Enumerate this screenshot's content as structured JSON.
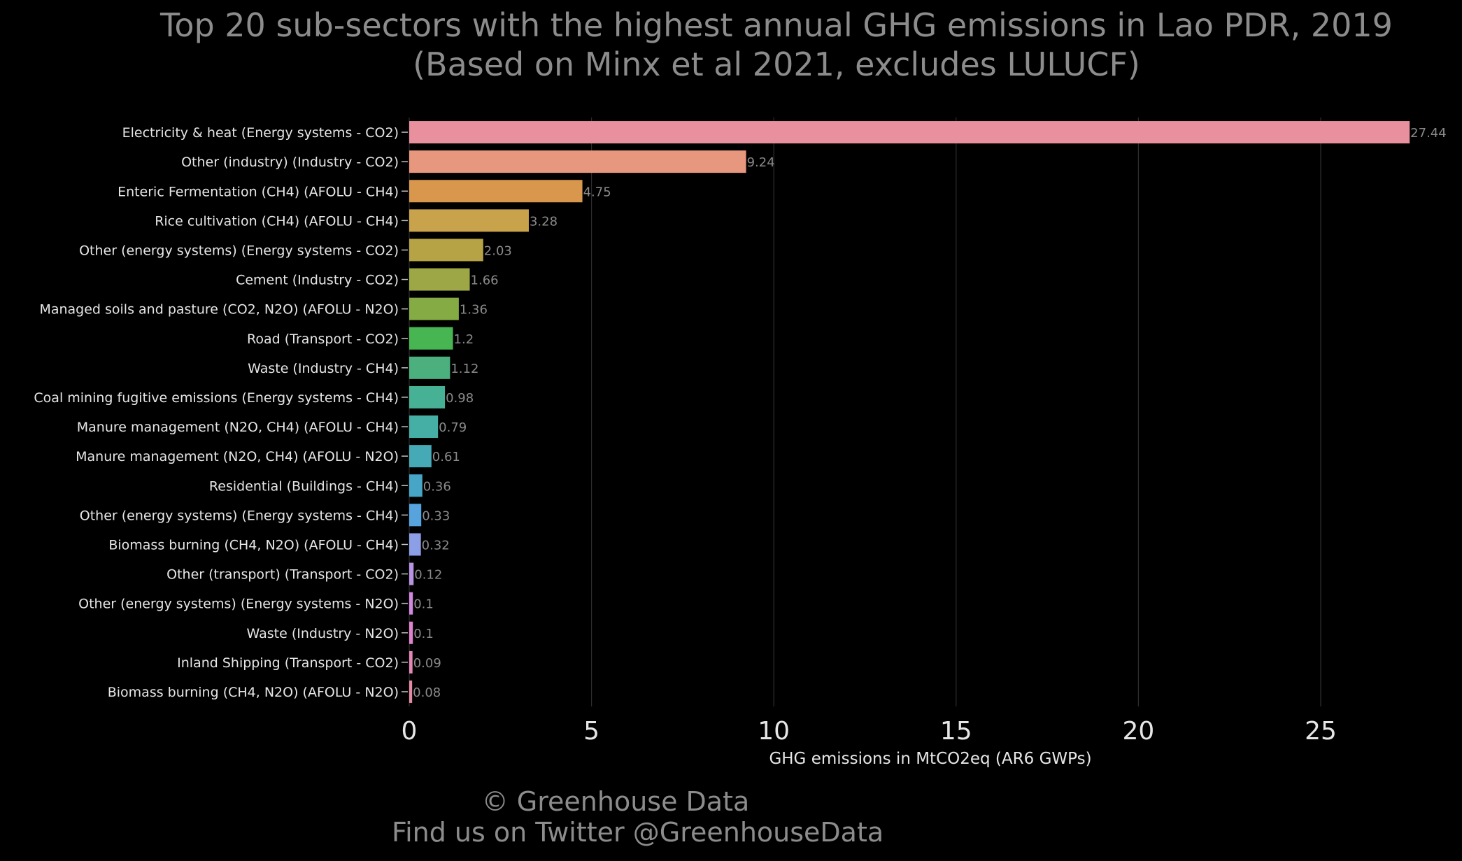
{
  "footer": {
    "copyright": "© Greenhouse Data",
    "twitter": "Find us on Twitter @GreenhouseData"
  },
  "chart_data": {
    "type": "bar",
    "orientation": "horizontal",
    "title": "Top 20 sub-sectors with the highest annual GHG emissions in Lao PDR, 2019",
    "subtitle": "(Based on Minx et al 2021, excludes LULUCF)",
    "xlabel": "GHG emissions in MtCO2eq (AR6 GWPs)",
    "ylabel": "",
    "xlim": [
      0,
      28.3
    ],
    "xticks": [
      0,
      5,
      10,
      15,
      20,
      25
    ],
    "grid": "vertical",
    "categories": [
      "Electricity & heat (Energy systems - CO2)",
      "Other (industry) (Industry - CO2)",
      "Enteric Fermentation (CH4) (AFOLU - CH4)",
      "Rice cultivation (CH4) (AFOLU - CH4)",
      "Other (energy systems) (Energy systems - CO2)",
      "Cement (Industry - CO2)",
      "Managed soils and pasture (CO2, N2O) (AFOLU - N2O)",
      "Road (Transport - CO2)",
      "Waste (Industry - CH4)",
      "Coal mining fugitive emissions (Energy systems - CH4)",
      "Manure management (N2O, CH4) (AFOLU - CH4)",
      "Manure management (N2O, CH4) (AFOLU - N2O)",
      "Residential (Buildings - CH4)",
      "Other (energy systems) (Energy systems - CH4)",
      "Biomass burning (CH4, N2O) (AFOLU - CH4)",
      "Other (transport) (Transport - CO2)",
      "Other (energy systems) (Energy systems - N2O)",
      "Waste (Industry - N2O)",
      "Inland Shipping (Transport - CO2)",
      "Biomass burning (CH4, N2O) (AFOLU - N2O)"
    ],
    "values": [
      27.44,
      9.24,
      4.75,
      3.28,
      2.03,
      1.66,
      1.36,
      1.2,
      1.12,
      0.98,
      0.79,
      0.61,
      0.36,
      0.33,
      0.32,
      0.12,
      0.1,
      0.1,
      0.09,
      0.08
    ],
    "value_labels": [
      "27.44",
      "9.24",
      "4.75",
      "3.28",
      "2.03",
      "1.66",
      "1.36",
      "1.2",
      "1.12",
      "0.98",
      "0.79",
      "0.61",
      "0.36",
      "0.33",
      "0.32",
      "0.12",
      "0.1",
      "0.1",
      "0.09",
      "0.08"
    ],
    "colors": [
      "#e8909e",
      "#e8977f",
      "#d8974c",
      "#c9a24c",
      "#b5a345",
      "#9ea745",
      "#85ab45",
      "#48b553",
      "#4bb07e",
      "#47b195",
      "#45aea5",
      "#45a9b6",
      "#47a6c8",
      "#56a3de",
      "#8c9fe6",
      "#b793e2",
      "#d288e0",
      "#df84cc",
      "#e486b6",
      "#e38aa5"
    ],
    "colors_theme": {
      "background": "#000000",
      "text_muted": "#8c8c8c",
      "text_axis": "#e6e6e6",
      "grid": "#2e2e2e"
    }
  }
}
